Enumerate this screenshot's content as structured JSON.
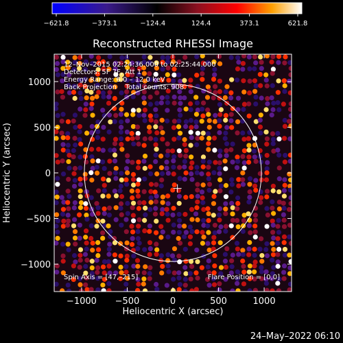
{
  "colorbar": {
    "tick_labels": [
      "-621.8",
      "-373.1",
      "-124.4",
      "124.4",
      "373.1",
      "621.8"
    ],
    "min": -621.8,
    "max": 621.8,
    "colors": [
      "#0000ff",
      "#3a1a8a",
      "#000000",
      "#8a1020",
      "#ff0000",
      "#ffa000",
      "#ffffff"
    ]
  },
  "plot": {
    "title": "Reconstructed RHESSI Image",
    "xlabel": "Heliocentric X (arcsec)",
    "ylabel": "Heliocentric Y (arcsec)",
    "xlim": [
      -1300,
      1300
    ],
    "ylim": [
      -1300,
      1300
    ],
    "x_ticks": [
      {
        "value": -1000,
        "label": "−1000"
      },
      {
        "value": -500,
        "label": "−500"
      },
      {
        "value": 0,
        "label": "0"
      },
      {
        "value": 500,
        "label": "500"
      },
      {
        "value": 1000,
        "label": "1000"
      }
    ],
    "y_ticks": [
      {
        "value": 1000,
        "label": "1000"
      },
      {
        "value": 500,
        "label": "500"
      },
      {
        "value": 0,
        "label": "0"
      },
      {
        "value": -500,
        "label": "−500"
      },
      {
        "value": -1000,
        "label": "−1000"
      }
    ],
    "limb_radius_arcsec": 970,
    "flare_marker": {
      "x": 50,
      "y": -170
    }
  },
  "annotations": {
    "line1": "12–Nov–2015 02:24:36.000 to 02:25:44.000",
    "line2": "Detectors: 5F 7F, Att 1",
    "line3": "Energy Range: 6.0 – 12.0 keV",
    "line4": "Back Projection    Total counts: 908.",
    "spin_axis": "Spin Axis = [47,–215]",
    "flare_position": "Flare Position = [0,0]"
  },
  "timestamp": "24–May–2022 06:10"
}
